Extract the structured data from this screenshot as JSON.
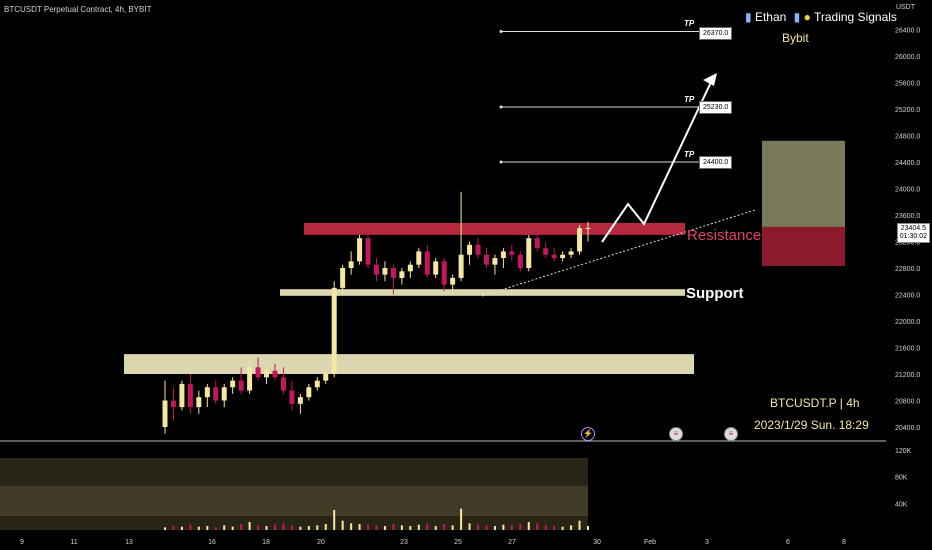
{
  "header": {
    "title": "BTCUSDT Perpetual Contract, 4h, BYBIT",
    "brand_left": "Ethan",
    "brand_right": "Trading Signals",
    "exchange": "Bybit",
    "currency": "USDT"
  },
  "annotations": {
    "resistance_label": "Resistance",
    "support_label": "Support",
    "tp_tag": "TP",
    "tp_levels": [
      "26370.0",
      "25230.0",
      "24400.0"
    ],
    "symbol_tf": "BTCUSDT.P | 4h",
    "datetime": "2023/1/29 Sun. 18:29"
  },
  "price_label": {
    "price": "23404.5",
    "countdown": "01:30:02"
  },
  "colors": {
    "up": "#f5e6a0",
    "down": "#c2185b",
    "resistance": "#b5283e",
    "support": "#d9d6b0",
    "target_zone": "#7a7a5a",
    "stop_zone": "#8b1a2b"
  },
  "chart_data": {
    "type": "candlestick",
    "title": "BTCUSDT Perpetual Contract, 4h, BYBIT",
    "y_unit": "USDT",
    "ylim": [
      20200,
      26700
    ],
    "y_ticks": [
      20400,
      20800,
      21200,
      21600,
      22000,
      22400,
      22800,
      23200,
      23600,
      24000,
      24400,
      24800,
      25200,
      25600,
      26000,
      26400
    ],
    "x_tick_labels": [
      "9",
      "11",
      "13",
      "16",
      "18",
      "20",
      "23",
      "25",
      "27",
      "30",
      "Feb",
      "3",
      "6",
      "8"
    ],
    "volume_ticks": [
      "120K",
      "80K",
      "40K"
    ],
    "resistance_zone": [
      23300,
      23480
    ],
    "support_zone": [
      22380,
      22480
    ],
    "lower_zone": [
      21200,
      21500
    ],
    "take_profits": [
      26370.0,
      25230.0,
      24400.0
    ],
    "target_box": [
      23420,
      24720
    ],
    "stop_box": [
      22830,
      23420
    ],
    "last_price": 23404.5,
    "candles": [
      [
        20400,
        21100,
        20300,
        20800
      ],
      [
        20800,
        21000,
        20500,
        20700
      ],
      [
        20700,
        21100,
        20650,
        21050
      ],
      [
        21050,
        21200,
        20600,
        20700
      ],
      [
        20700,
        20950,
        20600,
        20850
      ],
      [
        20850,
        21050,
        20700,
        21000
      ],
      [
        21000,
        21100,
        20750,
        20800
      ],
      [
        20800,
        21050,
        20700,
        21000
      ],
      [
        21000,
        21150,
        20900,
        21100
      ],
      [
        21100,
        21300,
        20900,
        20950
      ],
      [
        20950,
        21400,
        20900,
        21300
      ],
      [
        21300,
        21450,
        21100,
        21150
      ],
      [
        21150,
        21350,
        21050,
        21250
      ],
      [
        21250,
        21350,
        21100,
        21150
      ],
      [
        21150,
        21300,
        20900,
        20950
      ],
      [
        20950,
        21100,
        20650,
        20750
      ],
      [
        20750,
        20900,
        20600,
        20850
      ],
      [
        20850,
        21050,
        20800,
        21000
      ],
      [
        21000,
        21150,
        20950,
        21100
      ],
      [
        21100,
        21250,
        21050,
        21200
      ],
      [
        21200,
        22600,
        21150,
        22500
      ],
      [
        22500,
        22850,
        22400,
        22800
      ],
      [
        22800,
        23050,
        22700,
        22900
      ],
      [
        22900,
        23300,
        22850,
        23250
      ],
      [
        23250,
        23300,
        22800,
        22850
      ],
      [
        22850,
        22950,
        22600,
        22700
      ],
      [
        22700,
        22900,
        22600,
        22800
      ],
      [
        22800,
        22850,
        22400,
        22650
      ],
      [
        22650,
        22800,
        22550,
        22750
      ],
      [
        22750,
        22900,
        22650,
        22850
      ],
      [
        22850,
        23100,
        22800,
        23050
      ],
      [
        23050,
        23150,
        22650,
        22700
      ],
      [
        22700,
        22950,
        22650,
        22900
      ],
      [
        22900,
        22950,
        22450,
        22550
      ],
      [
        22550,
        22700,
        22400,
        22650
      ],
      [
        22650,
        23950,
        22600,
        23000
      ],
      [
        23000,
        23200,
        22850,
        23150
      ],
      [
        23150,
        23250,
        22950,
        23000
      ],
      [
        23000,
        23100,
        22800,
        22850
      ],
      [
        22850,
        23000,
        22700,
        22950
      ],
      [
        22950,
        23100,
        22800,
        23050
      ],
      [
        23050,
        23150,
        22900,
        23000
      ],
      [
        23000,
        23050,
        22750,
        22800
      ],
      [
        22800,
        23300,
        22750,
        23250
      ],
      [
        23250,
        23400,
        23050,
        23100
      ],
      [
        23100,
        23200,
        22950,
        23000
      ],
      [
        23000,
        23100,
        22900,
        22950
      ],
      [
        22950,
        23050,
        22900,
        23000
      ],
      [
        23000,
        23100,
        22950,
        23050
      ],
      [
        23050,
        23450,
        23000,
        23400
      ],
      [
        23400,
        23500,
        23200,
        23404.5
      ]
    ],
    "volumes": [
      4,
      6,
      5,
      8,
      5,
      6,
      4,
      7,
      5,
      9,
      12,
      7,
      6,
      8,
      10,
      7,
      5,
      6,
      7,
      9,
      30,
      14,
      10,
      9,
      8,
      7,
      6,
      9,
      7,
      6,
      8,
      10,
      6,
      9,
      7,
      32,
      10,
      8,
      7,
      6,
      8,
      7,
      9,
      12,
      10,
      7,
      6,
      5,
      7,
      14,
      6
    ]
  }
}
